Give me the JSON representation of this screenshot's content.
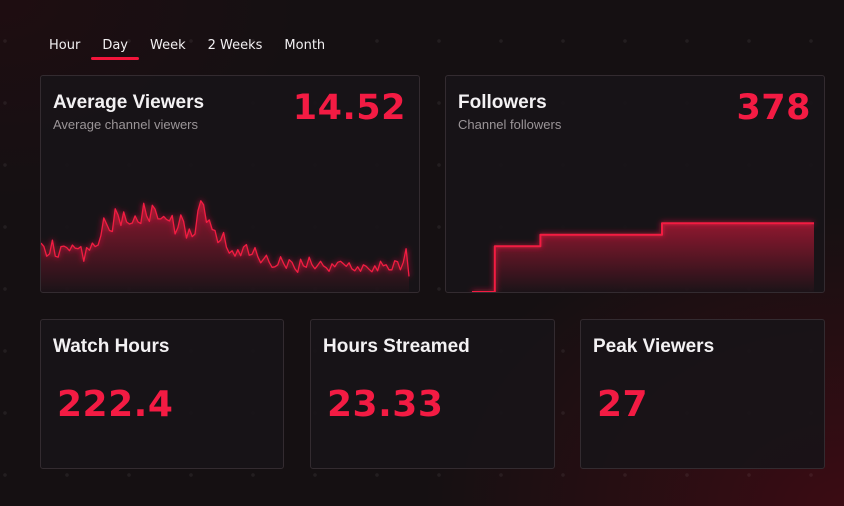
{
  "tabs": [
    {
      "label": "Hour",
      "active": false
    },
    {
      "label": "Day",
      "active": true
    },
    {
      "label": "Week",
      "active": false
    },
    {
      "label": "2 Weeks",
      "active": false
    },
    {
      "label": "Month",
      "active": false
    }
  ],
  "cards": {
    "average_viewers": {
      "title": "Average Viewers",
      "subtitle": "Average channel viewers",
      "value": "14.52"
    },
    "followers": {
      "title": "Followers",
      "subtitle": "Channel followers",
      "value": "378"
    },
    "watch_hours": {
      "title": "Watch Hours",
      "value": "222.4"
    },
    "hours_streamed": {
      "title": "Hours Streamed",
      "value": "23.33"
    },
    "peak_viewers": {
      "title": "Peak Viewers",
      "value": "27"
    }
  },
  "colors": {
    "accent": "#f31b43",
    "background": "#151012",
    "card": "#18131a",
    "card_border": "#332b30"
  },
  "chart_data": [
    {
      "type": "area",
      "title": "",
      "series": [
        {
          "values": [
            9.7,
            9.0,
            7.1,
            7.6,
            10.3,
            7.1,
            6.9,
            9.0,
            9.1,
            8.8,
            8.2,
            9.3,
            8.7,
            8.6,
            9.0,
            6.1,
            8.8,
            8.3,
            9.7,
            9.0,
            9.3,
            11.2,
            14.7,
            13.5,
            12.2,
            12.0,
            16.5,
            15.3,
            13.2,
            15.9,
            13.9,
            13.5,
            13.7,
            15.1,
            13.9,
            13.6,
            17.6,
            15.1,
            14.0,
            17.2,
            16.4,
            14.5,
            14.5,
            15.0,
            14.4,
            14.1,
            15.2,
            11.5,
            12.8,
            15.3,
            14.0,
            10.7,
            12.5,
            11.0,
            11.5,
            16.1,
            18.1,
            17.3,
            13.8,
            14.3,
            12.4,
            12.2,
            9.8,
            10.3,
            11.8,
            8.9,
            7.7,
            8.2,
            7.1,
            8.4,
            7.2,
            8.9,
            9.4,
            7.3,
            7.5,
            8.8,
            7.0,
            5.8,
            6.5,
            7.3,
            5.9,
            4.9,
            5.0,
            5.4,
            7.0,
            5.7,
            4.7,
            6.4,
            5.9,
            4.6,
            3.9,
            6.5,
            5.2,
            4.9,
            6.9,
            5.4,
            4.6,
            5.3,
            6.1,
            5.2,
            4.8,
            4.1,
            5.6,
            5.0,
            5.9,
            6.1,
            5.6,
            5.1,
            5.8,
            4.6,
            4.2,
            5.0,
            4.1,
            5.4,
            5.1,
            4.5,
            4.0,
            5.2,
            4.2,
            6.1,
            5.2,
            5.4,
            4.4,
            4.4,
            6.2,
            6.0,
            4.4,
            5.9,
            8.6,
            3.1
          ]
        }
      ],
      "ylim": [
        0,
        25
      ]
    },
    {
      "type": "line",
      "title": "",
      "series": [
        {
          "values": [
            370,
            370,
            370,
            374,
            374,
            374,
            374,
            374,
            374,
            375,
            375,
            375,
            375,
            375,
            375,
            375,
            375,
            375,
            375,
            375,
            375,
            375,
            375,
            375,
            375,
            376,
            376,
            376,
            376,
            376,
            376,
            376,
            376,
            376,
            376,
            376,
            376,
            376,
            376,
            376,
            376,
            376,
            376,
            376,
            376,
            376
          ]
        }
      ],
      "ylim": [
        370,
        381
      ]
    }
  ]
}
